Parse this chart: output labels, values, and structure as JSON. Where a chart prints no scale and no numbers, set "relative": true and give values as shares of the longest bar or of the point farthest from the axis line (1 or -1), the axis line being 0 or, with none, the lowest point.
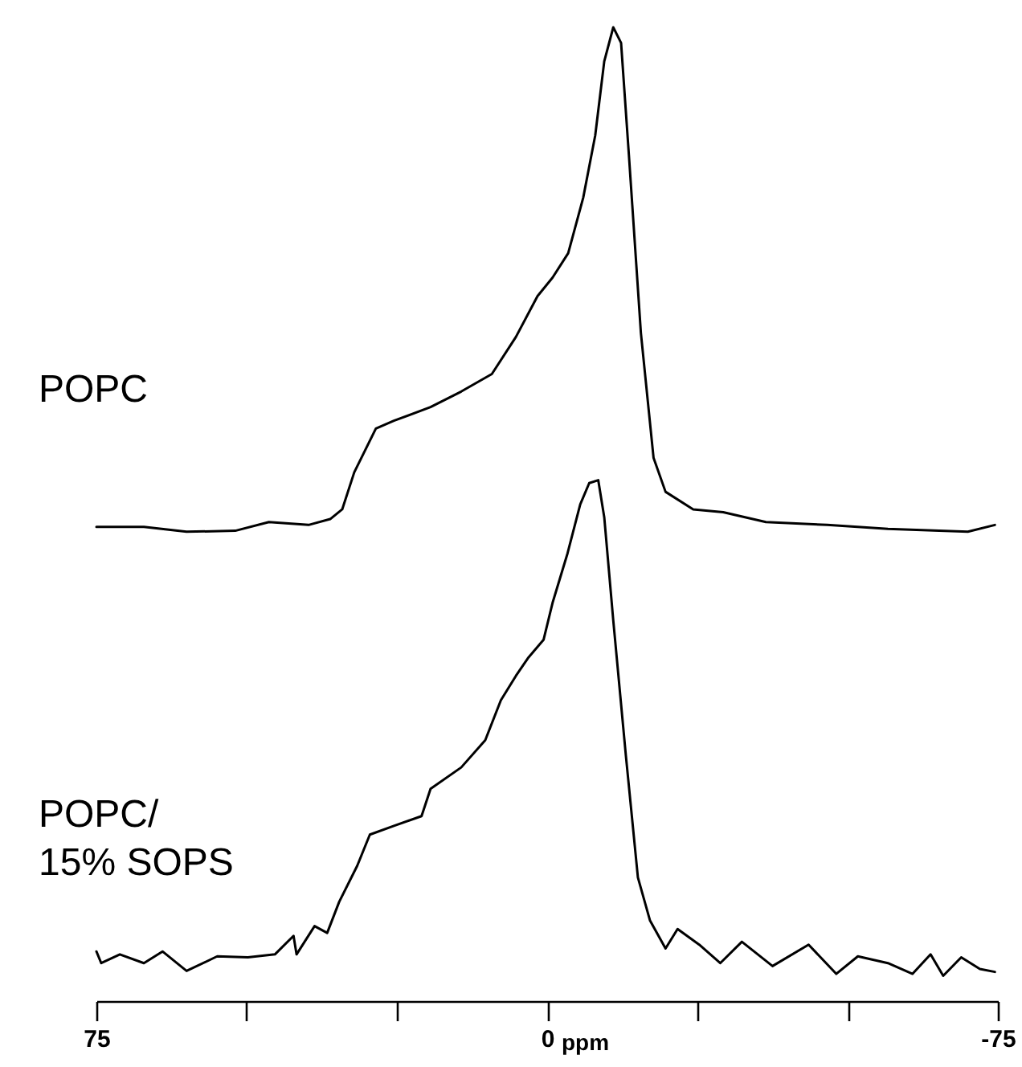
{
  "chart_data": {
    "type": "line",
    "relative": true,
    "xlabel": "ppm",
    "xlim": [
      75,
      -75
    ],
    "xticks": [
      75,
      {
        "value": 50,
        "label": null
      },
      {
        "value": 25,
        "label": null
      },
      0,
      {
        "value": -25,
        "label": null
      },
      {
        "value": -50,
        "label": null
      },
      -75
    ],
    "grid": false,
    "legend": false,
    "marker": "none",
    "line_style": "solid",
    "series": [
      {
        "name": "POPC",
        "color": "#000000",
        "x": [
          75,
          67.1,
          60,
          51.9,
          46.3,
          39.7,
          36.1,
          34.1,
          32.1,
          28.5,
          25.5,
          19.4,
          14.3,
          9.2,
          5.2,
          1.6,
          -0.9,
          -3.5,
          -6,
          -8,
          -9.5,
          -11,
          -12.3,
          -13.6,
          -15.6,
          -17.7,
          -19.7,
          -24.3,
          -29.3,
          -36.4,
          -46.6,
          -56.7,
          -70,
          -74.5
        ],
        "values": [
          0.487,
          0.487,
          0.482,
          0.483,
          0.492,
          0.489,
          0.495,
          0.505,
          0.543,
          0.588,
          0.596,
          0.61,
          0.626,
          0.644,
          0.682,
          0.724,
          0.743,
          0.768,
          0.825,
          0.889,
          0.965,
          1.0,
          0.984,
          0.869,
          0.686,
          0.558,
          0.523,
          0.505,
          0.502,
          0.492,
          0.489,
          0.485,
          0.482,
          0.489
        ]
      },
      {
        "name": "POPC/\n15% SOPS",
        "color": "#000000",
        "x": [
          75,
          74.2,
          71.1,
          67.1,
          64,
          60,
          54.9,
          49.8,
          45.3,
          42.2,
          41.7,
          38.7,
          36.6,
          34.6,
          31.6,
          29.5,
          25.5,
          20.9,
          19.4,
          14.3,
          10.3,
          7.7,
          5.2,
          3.1,
          0.6,
          -0.9,
          -3.4,
          -5.5,
          -7,
          -8.5,
          -9.5,
          -11,
          -13.1,
          -15.1,
          -17.1,
          -19.7,
          -21.7,
          -25.3,
          -28.8,
          -32.4,
          -37.5,
          -43.5,
          -48.1,
          -51.7,
          -56.7,
          -60.8,
          -63.8,
          -65.9,
          -68.9,
          -72,
          -74.5
        ],
        "values": [
          0.051,
          0.039,
          0.048,
          0.039,
          0.051,
          0.031,
          0.046,
          0.045,
          0.048,
          0.067,
          0.048,
          0.077,
          0.07,
          0.102,
          0.139,
          0.171,
          0.18,
          0.19,
          0.218,
          0.24,
          0.268,
          0.309,
          0.334,
          0.353,
          0.371,
          0.409,
          0.46,
          0.51,
          0.532,
          0.535,
          0.497,
          0.391,
          0.252,
          0.127,
          0.083,
          0.054,
          0.074,
          0.058,
          0.039,
          0.061,
          0.036,
          0.058,
          0.028,
          0.046,
          0.039,
          0.028,
          0.048,
          0.026,
          0.045,
          0.033,
          0.03
        ]
      }
    ]
  }
}
